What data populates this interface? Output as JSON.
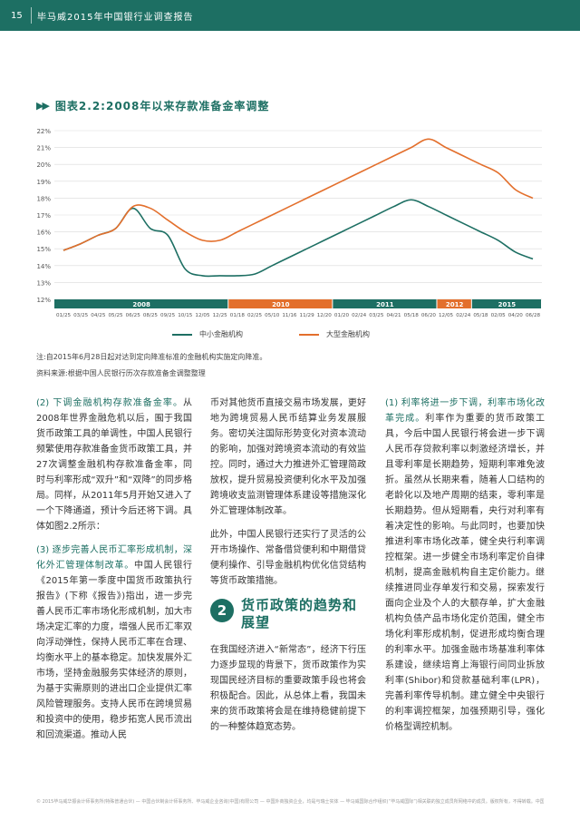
{
  "header": {
    "page_number": "15",
    "report_title": "毕马威2015年中国银行业调查报告"
  },
  "figure": {
    "title": "图表2.2:2008年以来存款准备金率调整",
    "note": "注:自2015年6月28日起对达到定向降准标准的金融机构实施定向降准。",
    "source": "资料来源:根据中国人民银行历次存款准备金调整整理"
  },
  "chart_data": {
    "type": "line",
    "title": "",
    "xlabel": "",
    "ylabel": "",
    "ylim": [
      12,
      22
    ],
    "yticks": [
      "12%",
      "13%",
      "14%",
      "15%",
      "16%",
      "17%",
      "18%",
      "19%",
      "20%",
      "21%",
      "22%"
    ],
    "x_tick_labels": [
      "01/25",
      "03/25",
      "04/25",
      "05/25",
      "06/25",
      "08/25",
      "09/25",
      "10/15",
      "12/05",
      "12/25",
      "01/18",
      "02/25",
      "05/10",
      "11/16",
      "11/29",
      "12/20",
      "01/20",
      "02/24",
      "03/25",
      "04/21",
      "05/18",
      "06/20",
      "12/05",
      "02/24",
      "05/18",
      "02/05",
      "04/20",
      "06/28"
    ],
    "year_bands": [
      {
        "label": "2008",
        "from": 0,
        "to": 10,
        "color": "#1d6f63"
      },
      {
        "label": "2010",
        "from": 10,
        "to": 16,
        "color": "#e36f2c"
      },
      {
        "label": "2011",
        "from": 16,
        "to": 22,
        "color": "#1d6f63"
      },
      {
        "label": "2012",
        "from": 22,
        "to": 24,
        "color": "#e36f2c"
      },
      {
        "label": "2015",
        "from": 24,
        "to": 27,
        "color": "#1d6f63"
      }
    ],
    "grid": true,
    "legend_position": "bottom",
    "series": [
      {
        "name": "中小金融机构",
        "color": "#1d6f63",
        "points": [
          [
            0,
            14.9
          ],
          [
            1,
            15.3
          ],
          [
            2,
            15.8
          ],
          [
            3,
            16.2
          ],
          [
            4,
            17.4
          ],
          [
            5,
            16.2
          ],
          [
            6,
            15.8
          ],
          [
            7,
            13.8
          ],
          [
            8,
            13.4
          ],
          [
            9,
            13.4
          ],
          [
            10,
            13.4
          ],
          [
            11,
            13.5
          ],
          [
            12,
            14.0
          ],
          [
            13,
            14.5
          ],
          [
            14,
            15.0
          ],
          [
            15,
            15.5
          ],
          [
            16,
            16.0
          ],
          [
            17,
            16.5
          ],
          [
            18,
            17.0
          ],
          [
            19,
            17.5
          ],
          [
            20,
            17.9
          ],
          [
            21,
            17.5
          ],
          [
            22,
            17.0
          ],
          [
            23,
            16.5
          ],
          [
            24,
            16.0
          ],
          [
            25,
            15.5
          ],
          [
            26,
            14.8
          ],
          [
            27,
            14.4
          ]
        ]
      },
      {
        "name": "大型金融机构",
        "color": "#e36f2c",
        "points": [
          [
            0,
            14.9
          ],
          [
            1,
            15.3
          ],
          [
            2,
            15.8
          ],
          [
            3,
            16.2
          ],
          [
            4,
            17.5
          ],
          [
            5,
            17.4
          ],
          [
            6,
            16.7
          ],
          [
            7,
            16.0
          ],
          [
            8,
            15.5
          ],
          [
            9,
            15.5
          ],
          [
            10,
            16.0
          ],
          [
            11,
            16.5
          ],
          [
            12,
            17.0
          ],
          [
            13,
            17.5
          ],
          [
            14,
            18.0
          ],
          [
            15,
            18.5
          ],
          [
            16,
            19.0
          ],
          [
            17,
            19.5
          ],
          [
            18,
            20.0
          ],
          [
            19,
            20.5
          ],
          [
            20,
            21.0
          ],
          [
            21,
            21.5
          ],
          [
            22,
            21.0
          ],
          [
            23,
            20.5
          ],
          [
            24,
            20.0
          ],
          [
            25,
            19.5
          ],
          [
            26,
            18.5
          ],
          [
            27,
            18.0
          ]
        ]
      }
    ]
  },
  "col1": {
    "p1_head": "(2) 下调金融机构存款准备金率。",
    "p1": "从2008年世界金融危机以后，囿于我国货币政策工具的单调性，中国人民银行频繁使用存款准备金货币政策工具，并27次调整金融机构存款准备金率，同时与利率形成“双升”和“双降”的同步格局。同样，从2011年5月开始又进入了一个下降通道，预计今后还将下调。具体如图2.2所示：",
    "p2_head": "(3) 逐步完善人民币汇率形成机制，深化外汇管理体制改革。",
    "p2": "中国人民银行《2015年第一季度中国货币政策执行报告》(下称《报告》)指出，进一步完善人民币汇率市场化形成机制，加大市场决定汇率的力度，增强人民币汇率双向浮动弹性，保持人民币汇率在合理、均衡水平上的基本稳定。加快发展外汇市场，坚持金融服务实体经济的原则，为基于实需原则的进出口企业提供汇率风险管理服务。支持人民币在跨境贸易和投资中的使用，稳步拓宽人民币流出和回流渠道。推动人民"
  },
  "col2": {
    "p1": "币对其他货币直接交易市场发展，更好地为跨境贸易人民币结算业务发展服务。密切关注国际形势变化对资本流动的影响，加强对跨境资本流动的有效监控。同时，通过大力推进外汇管理简政放权，提升贸易投资便利化水平及加强跨境收支监测管理体系建设等措施深化外汇管理体制改革。",
    "p2": "此外，中国人民银行还实行了灵活的公开市场操作、常备借贷便利和中期借贷便利操作、引导金融机构优化信贷结构等货币政策措施。",
    "section_number": "2",
    "section_title": "货币政策的趋势和展望",
    "p3": "在我国经济进入“新常态”，经济下行压力逐步显现的背景下，货币政策作为实现国民经济目标的重要政策手段也将会积极配合。因此，从总体上看，我国未来的货币政策将会是在维持稳健前提下的一种整体趋宽态势。"
  },
  "col3": {
    "p1_head": "(1) 利率将进一步下调，利率市场化改革完成。",
    "p1": "利率作为重要的货币政策工具，今后中国人民银行将会进一步下调人民币存贷款利率以刺激经济增长，并且零利率是长期趋势，短期利率难免波折。虽然从长期来看，随着人口结构的老龄化以及地产周期的结束，零利率是长期趋势。但从短期看，央行对利率有着决定性的影响。与此同时，也要加快推进利率市场化改革，健全央行利率调控框架。进一步健全市场利率定价自律机制，提高金融机构自主定价能力。继续推进同业存单发行和交易，探索发行面向企业及个人的大额存单，扩大金融机构负债产品市场化定价范围，健全市场化利率形成机制，促进形成均衡合理的利率水平。加强金融市场基准利率体系建设，继续培育上海银行间同业拆放利率(Shibor)和贷款基础利率(LPR)，完善利率传导机制。建立健全中央银行的利率调控框架，加强预期引导，强化价格型调控机制。"
  },
  "footer": {
    "text": "© 2015毕马威华振会计师事务所(特殊普通合伙) — 中国合伙制会计师事务所、毕马威企业咨询(中国)有限公司 — 中国外商独资企业，均是与瑞士实体 — 毕马威国际合作组织(“毕马威国际”)相关联的独立成员所网络中的成员。版权所有，不得转载。中国印刷。"
  }
}
